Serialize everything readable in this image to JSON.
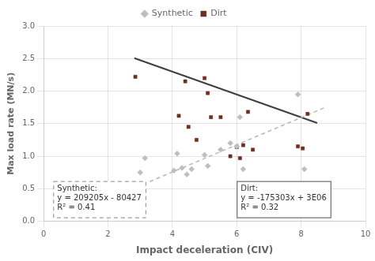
{
  "chart_data": {
    "type": "scatter",
    "xlabel": "Impact deceleration (CIV)",
    "ylabel": "Max load rate (MN/s)",
    "xlim": [
      0,
      10
    ],
    "ylim": [
      0.0,
      3.0
    ],
    "xticks": [
      0,
      2,
      4,
      6,
      8,
      10
    ],
    "yticks": [
      {
        "value": 0.0,
        "label": "0.0"
      },
      0.5,
      {
        "value": 1.0,
        "label": "1.0"
      },
      1.5,
      {
        "value": 2.0,
        "label": "2.0"
      },
      2.5,
      {
        "value": 3.0,
        "label": "3.0"
      }
    ],
    "grid": true,
    "legend": "top",
    "series": [
      {
        "name": "Synthetic",
        "type": "scatter",
        "marker": "diamond",
        "color": "#bebebe",
        "x": [
          3.0,
          3.15,
          4.05,
          4.15,
          4.3,
          4.45,
          4.6,
          5.0,
          5.1,
          5.5,
          5.8,
          6.0,
          6.1,
          6.2,
          7.9,
          8.1
        ],
        "values": [
          0.75,
          0.97,
          0.78,
          1.04,
          0.82,
          0.72,
          0.8,
          1.02,
          0.85,
          1.1,
          1.2,
          1.15,
          1.6,
          0.8,
          1.95,
          0.8
        ]
      },
      {
        "name": "Dirt",
        "type": "scatter",
        "marker": "square",
        "color": "#6B3020",
        "x": [
          2.85,
          4.2,
          4.4,
          4.5,
          4.75,
          5.0,
          5.1,
          5.2,
          5.5,
          5.8,
          6.0,
          6.1,
          6.2,
          6.35,
          6.5,
          7.9,
          8.05,
          8.2
        ],
        "values": [
          2.22,
          1.62,
          2.15,
          1.45,
          1.25,
          2.2,
          1.97,
          1.6,
          1.6,
          1.0,
          1.14,
          0.97,
          1.17,
          1.68,
          1.1,
          1.15,
          1.12,
          1.65
        ]
      },
      {
        "type": "line",
        "line_style": "dashed",
        "color": "#b8b8b8",
        "x": [
          3.3,
          8.8
        ],
        "values": [
          0.6099495,
          1.760577
        ]
      },
      {
        "type": "line",
        "line_style": "solid",
        "color": "#404040",
        "x": [
          2.82,
          8.5
        ],
        "values": [
          2.50564554,
          1.5099245
        ]
      }
    ],
    "annotations": [
      {
        "text": "Synthetic:\ny = 209205x - 80427\nR² = 0.41",
        "line_style": "dashed"
      },
      {
        "text": "Dirt:\ny = -175303x + 3E06\nR² = 0.32",
        "line_style": "solid"
      }
    ]
  }
}
